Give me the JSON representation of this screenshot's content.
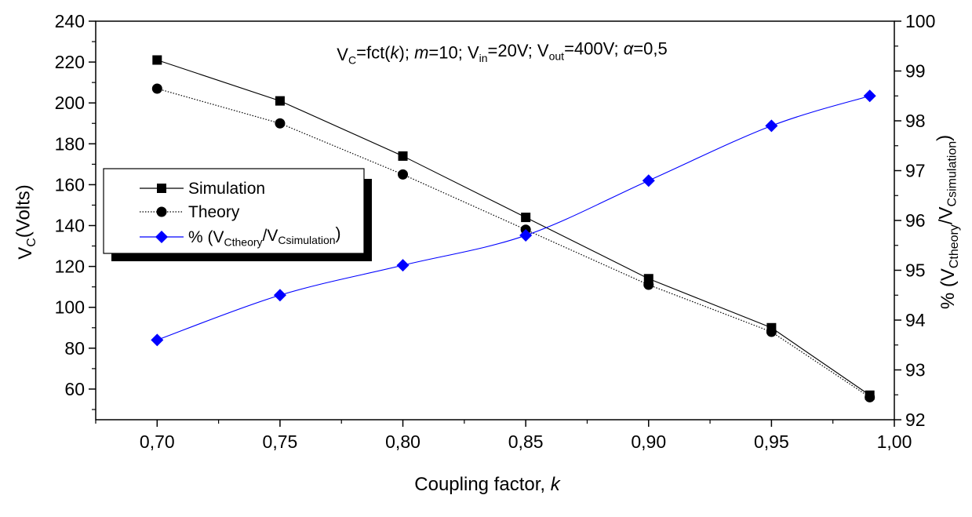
{
  "chart_data": {
    "type": "line",
    "title": "",
    "annotation": {
      "parts": [
        {
          "t": "V",
          "s": ""
        },
        {
          "t": "C",
          "s": "sub"
        },
        {
          "t": "=fct(",
          "s": ""
        },
        {
          "t": "k",
          "s": "i"
        },
        {
          "t": "); ",
          "s": ""
        },
        {
          "t": "m",
          "s": "i"
        },
        {
          "t": "=10; V",
          "s": ""
        },
        {
          "t": "in",
          "s": "sub"
        },
        {
          "t": "=20V; V",
          "s": ""
        },
        {
          "t": "out",
          "s": "sub"
        },
        {
          "t": "=400V; ",
          "s": ""
        },
        {
          "t": "α",
          "s": "i"
        },
        {
          "t": "=0,5",
          "s": ""
        }
      ]
    },
    "xlabel": {
      "parts": [
        {
          "t": "Coupling factor, ",
          "s": ""
        },
        {
          "t": "k",
          "s": "i"
        }
      ]
    },
    "ylabel_left": {
      "parts": [
        {
          "t": "V",
          "s": ""
        },
        {
          "t": "C",
          "s": "sub"
        },
        {
          "t": "(Volts)",
          "s": ""
        }
      ]
    },
    "ylabel_right": {
      "parts": [
        {
          "t": "% (V",
          "s": ""
        },
        {
          "t": "Ctheory",
          "s": "sub"
        },
        {
          "t": "/V",
          "s": ""
        },
        {
          "t": "Csimulation",
          "s": "sub"
        },
        {
          "t": ")",
          "s": ""
        }
      ]
    },
    "xlim": [
      0.675,
      1.0
    ],
    "ylim_left": [
      45,
      240
    ],
    "ylim_right": [
      92,
      100
    ],
    "x_ticks": [
      0.7,
      0.75,
      0.8,
      0.85,
      0.9,
      0.95,
      1.0
    ],
    "x_tick_labels": [
      "0,70",
      "0,75",
      "0,80",
      "0,85",
      "0,90",
      "0,95",
      "1,00"
    ],
    "y_left_ticks": [
      60,
      80,
      100,
      120,
      140,
      160,
      180,
      200,
      220,
      240
    ],
    "y_left_tick_labels": [
      "60",
      "80",
      "100",
      "120",
      "140",
      "160",
      "180",
      "200",
      "220",
      "240"
    ],
    "y_right_ticks": [
      92,
      93,
      94,
      95,
      96,
      97,
      98,
      99,
      100
    ],
    "y_right_tick_labels": [
      "92",
      "93",
      "94",
      "95",
      "96",
      "97",
      "98",
      "99",
      "100"
    ],
    "x": [
      0.7,
      0.75,
      0.8,
      0.85,
      0.9,
      0.95,
      0.99
    ],
    "series": [
      {
        "name": {
          "parts": [
            {
              "t": "Simulation",
              "s": ""
            }
          ]
        },
        "axis": "left",
        "marker": "square",
        "line": "solid",
        "color": "#000000",
        "values": [
          221,
          201,
          174,
          144,
          114,
          90,
          57
        ]
      },
      {
        "name": {
          "parts": [
            {
              "t": "Theory",
              "s": ""
            }
          ]
        },
        "axis": "left",
        "marker": "circle",
        "line": "dotted",
        "color": "#000000",
        "values": [
          207,
          190,
          165,
          138,
          111,
          88,
          56
        ]
      },
      {
        "name": {
          "parts": [
            {
              "t": "% (V",
              "s": ""
            },
            {
              "t": "Ctheory",
              "s": "sub"
            },
            {
              "t": "/V",
              "s": ""
            },
            {
              "t": "Csimulation",
              "s": "sub"
            },
            {
              "t": ")",
              "s": ""
            }
          ]
        },
        "axis": "right",
        "marker": "diamond",
        "line": "solid",
        "color": "#0000ff",
        "values": [
          93.6,
          94.5,
          95.1,
          95.7,
          96.8,
          97.9,
          98.5
        ]
      }
    ],
    "legend_placement": "left"
  }
}
